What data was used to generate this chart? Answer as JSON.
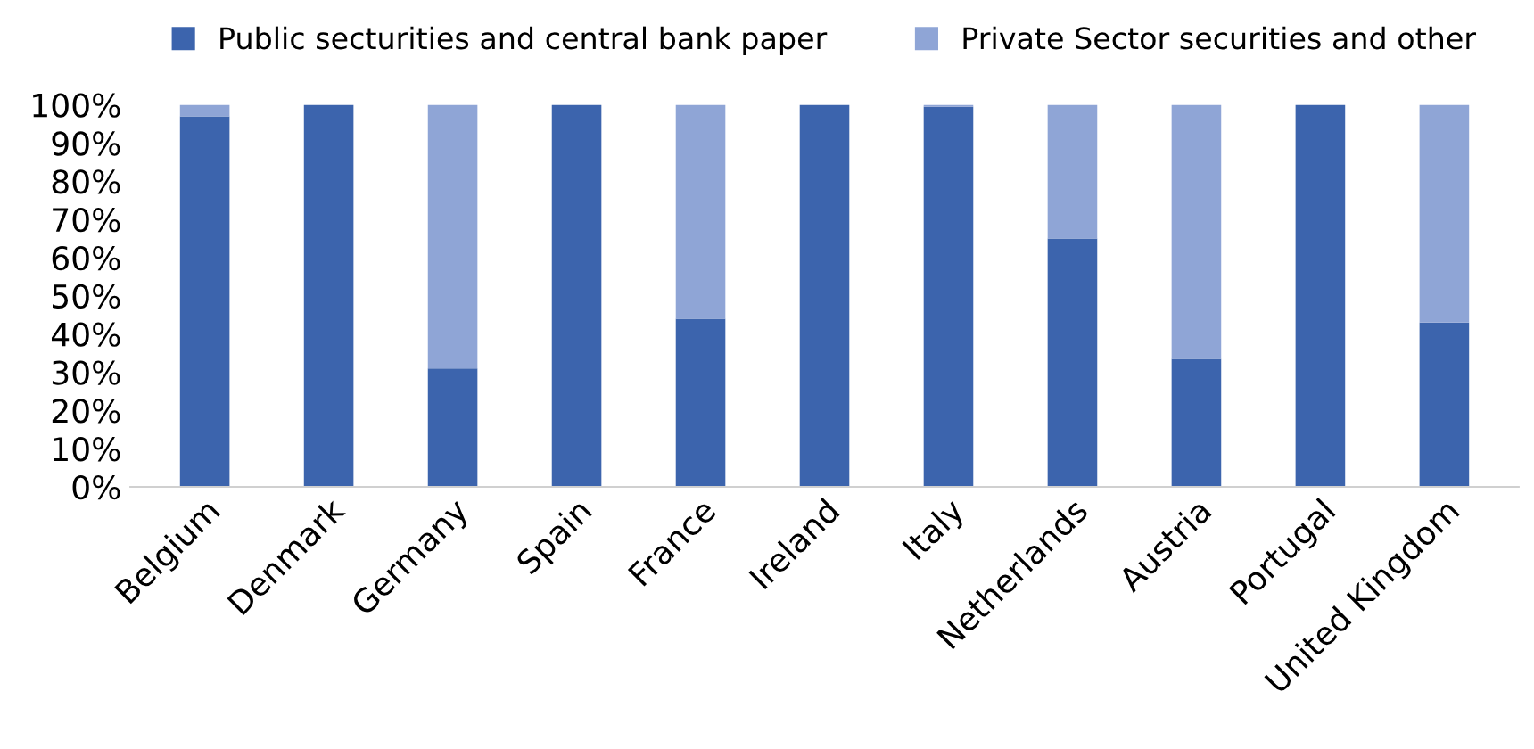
{
  "chart_data": {
    "type": "bar",
    "stacked": true,
    "categories": [
      "Belgium",
      "Denmark",
      "Germany",
      "Spain",
      "France",
      "Ireland",
      "Italy",
      "Netherlands",
      "Austria",
      "Portugal",
      "United Kingdom"
    ],
    "series": [
      {
        "name": "Public secturities and central bank paper",
        "color": "#3c64ad",
        "values": [
          97,
          100,
          31,
          100,
          44,
          100,
          99.5,
          65,
          33.5,
          100,
          43
        ]
      },
      {
        "name": "Private Sector securities and other",
        "color": "#8fa5d6",
        "values": [
          3,
          0,
          69,
          0,
          56,
          0,
          0.5,
          35,
          66.5,
          0,
          57
        ]
      }
    ],
    "ylim": [
      0,
      100
    ],
    "yticks": [
      {
        "value": 0,
        "label": "0%"
      },
      {
        "value": 10,
        "label": "10%"
      },
      {
        "value": 20,
        "label": "20%"
      },
      {
        "value": 30,
        "label": "30%"
      },
      {
        "value": 40,
        "label": "40%"
      },
      {
        "value": 50,
        "label": "50%"
      },
      {
        "value": 60,
        "label": "60%"
      },
      {
        "value": 70,
        "label": "70%"
      },
      {
        "value": 80,
        "label": "80%"
      },
      {
        "value": 90,
        "label": "90%"
      },
      {
        "value": 100,
        "label": "100%"
      }
    ],
    "grid": false,
    "legend": "top"
  }
}
